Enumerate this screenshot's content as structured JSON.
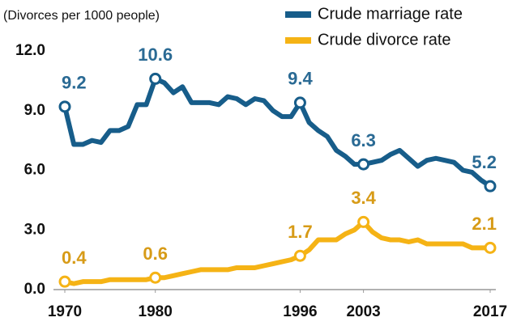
{
  "chart_data": {
    "type": "line",
    "y_axis_label": "(Divorces per 1000 people)",
    "x": [
      1970,
      1971,
      1972,
      1973,
      1974,
      1975,
      1976,
      1977,
      1978,
      1979,
      1980,
      1981,
      1982,
      1983,
      1984,
      1985,
      1986,
      1987,
      1988,
      1989,
      1990,
      1991,
      1992,
      1993,
      1994,
      1995,
      1996,
      1997,
      1998,
      1999,
      2000,
      2001,
      2002,
      2003,
      2004,
      2005,
      2006,
      2007,
      2008,
      2009,
      2010,
      2011,
      2012,
      2013,
      2014,
      2015,
      2016,
      2017
    ],
    "series": [
      {
        "name": "Crude marriage rate",
        "color": "#175d8a",
        "label_color": "#2a6a94",
        "values": [
          9.2,
          7.3,
          7.3,
          7.5,
          7.4,
          8.0,
          8.0,
          8.2,
          9.3,
          9.3,
          10.6,
          10.4,
          9.9,
          10.2,
          9.4,
          9.4,
          9.4,
          9.3,
          9.7,
          9.6,
          9.3,
          9.6,
          9.5,
          9.0,
          8.7,
          8.7,
          9.4,
          8.4,
          8.0,
          7.7,
          7.0,
          6.7,
          6.3,
          6.3,
          6.4,
          6.5,
          6.8,
          7.0,
          6.6,
          6.2,
          6.5,
          6.6,
          6.5,
          6.4,
          6.0,
          5.9,
          5.5,
          5.2
        ]
      },
      {
        "name": "Crude divorce rate",
        "color": "#f5b315",
        "label_color": "#d79b17",
        "values": [
          0.4,
          0.3,
          0.4,
          0.4,
          0.4,
          0.5,
          0.5,
          0.5,
          0.5,
          0.5,
          0.6,
          0.6,
          0.7,
          0.8,
          0.9,
          1.0,
          1.0,
          1.0,
          1.0,
          1.1,
          1.1,
          1.1,
          1.2,
          1.3,
          1.4,
          1.5,
          1.7,
          2.0,
          2.5,
          2.5,
          2.5,
          2.8,
          3.0,
          3.4,
          2.9,
          2.6,
          2.5,
          2.5,
          2.4,
          2.5,
          2.3,
          2.3,
          2.3,
          2.3,
          2.3,
          2.1,
          2.1,
          2.1
        ]
      }
    ],
    "xlim": [
      1970,
      2017
    ],
    "xticks": [
      1970,
      1980,
      1996,
      2003,
      2017
    ],
    "ylim": [
      0,
      12
    ],
    "yticks": [
      {
        "value": 0,
        "label": "0.0"
      },
      {
        "value": 3,
        "label": "3.0"
      },
      {
        "value": 6,
        "label": "6.0"
      },
      {
        "value": 9,
        "label": "9.0"
      },
      {
        "value": 12,
        "label": "12.0"
      }
    ],
    "grid": false,
    "legend": "top-right"
  }
}
